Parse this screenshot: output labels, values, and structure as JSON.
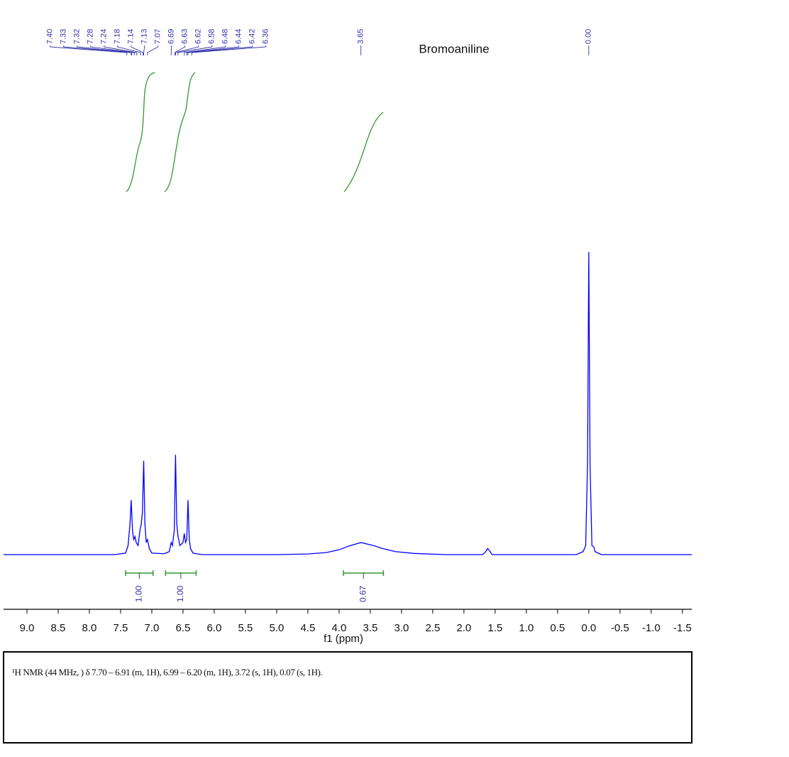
{
  "chart_data": {
    "type": "nmr",
    "title": "Bromoaniline",
    "x_label": "f1 (ppm)",
    "color": "#0000ff",
    "xlim": [
      9.375,
      -1.65
    ],
    "ylim": [
      0,
      100
    ],
    "xticks": [
      {
        "value": 9,
        "label": "9.0"
      },
      {
        "value": 8.5,
        "label": "8.5"
      },
      {
        "value": 8,
        "label": "8.0"
      },
      {
        "value": 7.5,
        "label": "7.5"
      },
      {
        "value": 7,
        "label": "7.0"
      },
      {
        "value": 6.5,
        "label": "6.5"
      },
      {
        "value": 6,
        "label": "6.0"
      },
      {
        "value": 5.5,
        "label": "5.5"
      },
      {
        "value": 5,
        "label": "5.0"
      },
      {
        "value": 4.5,
        "label": "4.5"
      },
      {
        "value": 4,
        "label": "4.0"
      },
      {
        "value": 3.5,
        "label": "3.5"
      },
      {
        "value": 3,
        "label": "3.0"
      },
      {
        "value": 2.5,
        "label": "2.5"
      },
      {
        "value": 2,
        "label": "2.0"
      },
      {
        "value": 1.5,
        "label": "1.5"
      },
      {
        "value": 1,
        "label": "1.0"
      },
      {
        "value": 0.5,
        "label": "0.5"
      },
      {
        "value": 0,
        "label": "0.0"
      },
      {
        "value": -0.5,
        "label": "-0.5"
      },
      {
        "value": -1,
        "label": "-1.0"
      },
      {
        "value": -1.5,
        "label": "-1.5"
      }
    ],
    "x": [
      9.375,
      7.6,
      7.42,
      7.38,
      7.35,
      7.33,
      7.31,
      7.29,
      7.27,
      7.25,
      7.22,
      7.19,
      7.17,
      7.15,
      7.13,
      7.11,
      7.09,
      7.07,
      7.04,
      7.0,
      6.8,
      6.72,
      6.69,
      6.67,
      6.64,
      6.62,
      6.6,
      6.58,
      6.55,
      6.5,
      6.48,
      6.46,
      6.44,
      6.42,
      6.4,
      6.38,
      6.34,
      6.2,
      5.0,
      4.5,
      4.2,
      4.0,
      3.85,
      3.65,
      3.45,
      3.3,
      3.1,
      2.8,
      2.3,
      1.7,
      1.65,
      1.62,
      1.58,
      1.55,
      0.2,
      0.09,
      0.05,
      0.02,
      0.0,
      -0.02,
      -0.05,
      -0.08,
      -0.1,
      -0.2,
      -1.65
    ],
    "values": [
      0,
      0,
      0.5,
      3,
      10,
      18,
      8,
      5,
      6,
      4,
      3,
      8,
      10,
      14,
      31,
      10,
      4,
      5,
      2,
      0.5,
      0.3,
      1,
      4,
      3,
      8,
      33,
      10,
      6,
      3,
      4,
      7,
      4,
      5,
      18,
      5,
      2,
      0.5,
      0,
      0,
      0.2,
      0.7,
      1.6,
      2.8,
      4,
      3,
      2,
      1,
      0.4,
      0,
      0,
      1,
      2,
      1,
      0,
      0,
      1,
      3,
      30,
      100,
      30,
      3,
      2.5,
      1,
      0,
      0
    ],
    "peaks": {
      "values": [
        7.4,
        7.33,
        7.32,
        7.28,
        7.24,
        7.18,
        7.14,
        7.13,
        7.07,
        6.69,
        6.63,
        6.62,
        6.58,
        6.48,
        6.44,
        6.42,
        6.36,
        3.65,
        0
      ],
      "value_labels": [
        "7.40",
        "7.33",
        "7.32",
        "7.28",
        "7.24",
        "7.18",
        "7.14",
        "7.13",
        "7.07",
        "6.69",
        "6.63",
        "6.62",
        "6.58",
        "6.48",
        "6.44",
        "6.42",
        "6.36",
        "3.65",
        "0.00"
      ]
    },
    "integrals": {
      "ranges": [
        [
          7.42,
          6.98
        ],
        [
          6.78,
          6.29
        ],
        [
          3.93,
          3.29
        ]
      ],
      "values": [
        1,
        1,
        0.67
      ],
      "value_labels": [
        "1.00",
        "1.00",
        "0.67"
      ]
    }
  },
  "report": "¹H NMR (44 MHz, ) δ 7.70 – 6.91 (m, 1H), 6.99 – 6.20 (m, 1H), 3.72 (s, 1H), 0.07 (s, 1H)."
}
